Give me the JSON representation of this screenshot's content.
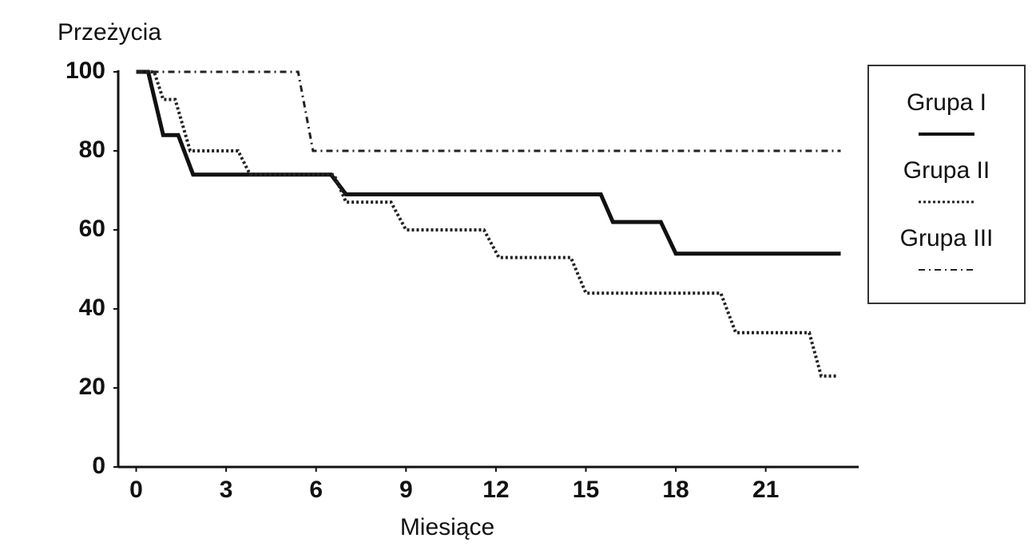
{
  "chart_data": {
    "type": "line",
    "title": "Przeżycia",
    "x_label": "Miesiące",
    "xlim": [
      -0.6,
      24.1
    ],
    "ylim": [
      0,
      100
    ],
    "xticks": [
      0,
      3,
      6,
      9,
      12,
      15,
      18,
      21
    ],
    "yticks": [
      0,
      20,
      40,
      60,
      80,
      100
    ],
    "grid": false,
    "legend_position": "right",
    "series": [
      {
        "name": "Grupa I",
        "color": "#111111",
        "line_style": "solid",
        "line_width": 5,
        "x": [
          0,
          0.4,
          0.9,
          1.4,
          1.9,
          6.5,
          7.0,
          15.5,
          15.9,
          17.5,
          18.0,
          23.5
        ],
        "values": [
          100,
          100,
          84,
          84,
          74,
          74,
          69,
          69,
          62,
          62,
          54,
          54
        ]
      },
      {
        "name": "Grupa II",
        "color": "#222222",
        "line_style": "dotted",
        "line_width": 4,
        "x": [
          0,
          0.6,
          0.9,
          1.3,
          1.8,
          3.4,
          3.8,
          6.6,
          7.0,
          8.5,
          9.0,
          11.6,
          12.1,
          14.5,
          15.0,
          19.5,
          20.0,
          22.45,
          22.85,
          23.4
        ],
        "values": [
          100,
          100,
          93,
          93,
          80,
          80,
          74,
          74,
          67,
          67,
          60,
          60,
          53,
          53,
          44,
          44,
          34,
          34,
          23,
          23
        ]
      },
      {
        "name": "Grupa III",
        "color": "#222222",
        "line_style": "dashdot",
        "line_width": 3,
        "x": [
          0,
          5.4,
          5.9,
          23.5
        ],
        "values": [
          100,
          100,
          80,
          80
        ]
      }
    ]
  }
}
